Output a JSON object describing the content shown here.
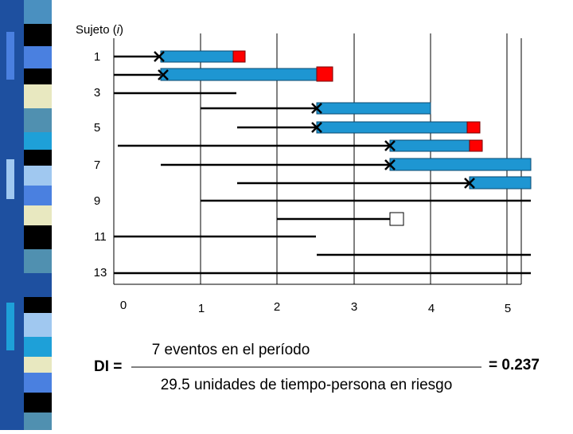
{
  "y_axis_title": {
    "before": "Sujeto (",
    "variable": "i",
    "after": ")"
  },
  "y_labels": [
    "1",
    "3",
    "5",
    "7",
    "9",
    "11",
    "13"
  ],
  "x_labels": [
    "0",
    "1",
    "2",
    "3",
    "4",
    "5"
  ],
  "formula": {
    "lhs": "DI =",
    "numerator": "7 eventos en el período",
    "denominator": "29.5 unidades de tiempo-persona en riesgo",
    "result": "= 0.237"
  }
}
